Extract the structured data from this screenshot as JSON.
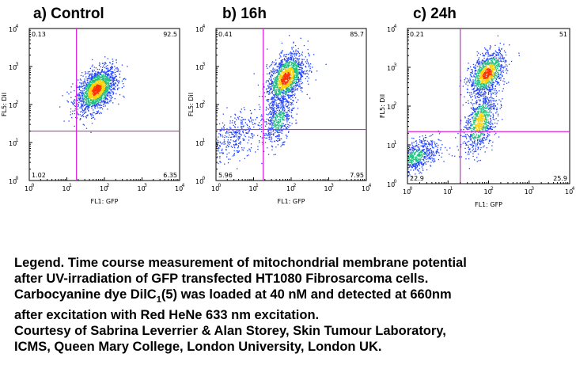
{
  "colors": {
    "gate": "#e020e0",
    "axis": "#000000",
    "dot_low": "#2040ff",
    "dot_mid": "#20c080",
    "dot_high": "#ffd000",
    "dot_peak": "#ff3000"
  },
  "chart_data": [
    {
      "type": "scatter",
      "title": "a) Control",
      "xlabel": "FL1: GFP",
      "ylabel": "FL5: DiI",
      "scale": "log",
      "xlim": [
        1,
        10000
      ],
      "ylim": [
        1,
        10000
      ],
      "x_ticks": [
        "10",
        "10",
        "10",
        "10",
        "10"
      ],
      "x_tick_exponents": [
        "0",
        "1",
        "2",
        "3",
        "4"
      ],
      "y_ticks": [
        "10",
        "10",
        "10",
        "10",
        "10"
      ],
      "y_tick_exponents": [
        "0",
        "1",
        "2",
        "3",
        "4"
      ],
      "gate": {
        "x": 18,
        "y": 20
      },
      "quadrants": {
        "top_left": "0.13",
        "top_right": "92.5",
        "bottom_left": "1.02",
        "bottom_right": "6.35"
      },
      "clusters": [
        {
          "x": 60,
          "y": 250,
          "spread_x": 0.26,
          "spread_y": 0.26,
          "count": 1800,
          "density": "peak"
        }
      ]
    },
    {
      "type": "scatter",
      "title": "b) 16h",
      "xlabel": "FL1: GFP",
      "ylabel": "FL5: DiI",
      "scale": "log",
      "xlim": [
        1,
        10000
      ],
      "ylim": [
        1,
        10000
      ],
      "x_ticks": [
        "10",
        "10",
        "10",
        "10",
        "10"
      ],
      "x_tick_exponents": [
        "0",
        "1",
        "2",
        "3",
        "4"
      ],
      "y_ticks": [
        "10",
        "10",
        "10",
        "10",
        "10"
      ],
      "y_tick_exponents": [
        "0",
        "1",
        "2",
        "3",
        "4"
      ],
      "gate": {
        "x": 18,
        "y": 22
      },
      "quadrants": {
        "top_left": "0.41",
        "top_right": "85.7",
        "bottom_left": "5.96",
        "bottom_right": "7.95"
      },
      "clusters": [
        {
          "x": 70,
          "y": 500,
          "spread_x": 0.25,
          "spread_y": 0.3,
          "count": 1500,
          "density": "peak"
        },
        {
          "x": 45,
          "y": 40,
          "spread_x": 0.2,
          "spread_y": 0.3,
          "count": 500,
          "density": "mid"
        },
        {
          "x": 3,
          "y": 15,
          "spread_x": 0.35,
          "spread_y": 0.3,
          "count": 350,
          "density": "low"
        }
      ]
    },
    {
      "type": "scatter",
      "title": "c) 24h",
      "xlabel": "FL1: GFP",
      "ylabel": "FL5: DiI",
      "scale": "log",
      "xlim": [
        1,
        10000
      ],
      "ylim": [
        1,
        10000
      ],
      "x_ticks": [
        "10",
        "10",
        "10",
        "10",
        "10"
      ],
      "x_tick_exponents": [
        "0",
        "1",
        "2",
        "3",
        "4"
      ],
      "y_ticks": [
        "10",
        "10",
        "10",
        "10",
        "10"
      ],
      "y_tick_exponents": [
        "0",
        "1",
        "2",
        "3",
        "4"
      ],
      "gate": {
        "x": 20,
        "y": 22
      },
      "quadrants": {
        "top_left": "0.21",
        "top_right": "51",
        "bottom_left": "22.9",
        "bottom_right": "25.9"
      },
      "clusters": [
        {
          "x": 90,
          "y": 700,
          "spread_x": 0.22,
          "spread_y": 0.25,
          "count": 1100,
          "density": "peak"
        },
        {
          "x": 60,
          "y": 40,
          "spread_x": 0.2,
          "spread_y": 0.35,
          "count": 900,
          "density": "high"
        },
        {
          "x": 1.5,
          "y": 5,
          "spread_x": 0.3,
          "spread_y": 0.2,
          "count": 700,
          "density": "mid"
        }
      ]
    }
  ],
  "legend": {
    "line1": "Legend. Time course measurement of mitochondrial membrane potential",
    "line2": "after  UV-irradiation of GFP transfected HT1080 Fibrosarcoma cells.",
    "line3_pre": "Carbocyanine dye DilC",
    "line3_sub": "1",
    "line3_post": "(5) was loaded at 40 nM and detected at 660nm",
    "line4": "after excitation with Red HeNe 633 nm excitation.",
    "line5": "Courtesy of Sabrina Leverrier & Alan Storey, Skin Tumour Laboratory,",
    "line6": " ICMS, Queen Mary College, London University, London UK."
  }
}
